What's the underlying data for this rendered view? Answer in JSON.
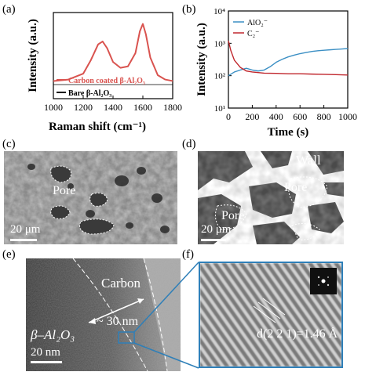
{
  "panels": {
    "a": {
      "label": "(a)"
    },
    "b": {
      "label": "(b)"
    },
    "c": {
      "label": "(c)",
      "pore_label": "Pore",
      "scale": "20 μm"
    },
    "d": {
      "label": "(d)",
      "wall_label": "Wall",
      "pore_label_1": "Pore",
      "pore_label_2": "Pore",
      "scale": "20 μm"
    },
    "e": {
      "label": "(e)",
      "carbon_label": "Carbon",
      "thickness": "~ 30 nm",
      "phase": "β–Al₂O₃",
      "scale": "20 nm"
    },
    "f": {
      "label": "(f)",
      "dspacing": "d(2 2 1)=1.46 Å"
    }
  },
  "chart_data": [
    {
      "type": "line",
      "panel": "a",
      "xlabel": "Raman shift (cm⁻¹)",
      "ylabel": "Intensity (a.u.)",
      "xlim": [
        1000,
        1800
      ],
      "x_ticks": [
        1000,
        1200,
        1400,
        1600,
        1800
      ],
      "legend_position": "bottom",
      "series": [
        {
          "name": "Carbon coated β-Al₂O₃",
          "color": "#d9534f",
          "x": [
            1000,
            1100,
            1200,
            1250,
            1300,
            1330,
            1360,
            1400,
            1450,
            1500,
            1550,
            1580,
            1600,
            1620,
            1650,
            1700,
            1750,
            1800
          ],
          "values": [
            0.1,
            0.12,
            0.2,
            0.38,
            0.6,
            0.64,
            0.55,
            0.36,
            0.28,
            0.3,
            0.48,
            0.78,
            0.88,
            0.74,
            0.42,
            0.18,
            0.12,
            0.1
          ]
        },
        {
          "name": "Bare β-Al₂O₃",
          "color": "#000000",
          "x": [
            1000,
            1800
          ],
          "values": [
            0.0,
            0.0
          ]
        }
      ]
    },
    {
      "type": "line",
      "panel": "b",
      "xlabel": "Time (s)",
      "ylabel": "Intensity (a.u.)",
      "xlim": [
        0,
        1000
      ],
      "ylim": [
        10,
        10000
      ],
      "yscale": "log",
      "x_ticks": [
        0,
        200,
        400,
        600,
        800,
        1000
      ],
      "y_ticks": [
        {
          "value": 10,
          "label": "10¹"
        },
        {
          "value": 100,
          "label": "10²"
        },
        {
          "value": 1000,
          "label": "10³"
        },
        {
          "value": 10000,
          "label": "10⁴"
        }
      ],
      "legend_position": "top-left",
      "series": [
        {
          "name": "AlO₂⁻",
          "color": "#3b8fc4",
          "x": [
            0,
            50,
            100,
            150,
            200,
            250,
            300,
            350,
            400,
            450,
            500,
            550,
            600,
            650,
            700,
            750,
            800,
            850,
            900,
            950,
            1000
          ],
          "values": [
            100,
            130,
            150,
            170,
            150,
            140,
            150,
            190,
            260,
            320,
            380,
            430,
            480,
            520,
            560,
            590,
            610,
            630,
            650,
            670,
            690
          ]
        },
        {
          "name": "C₂⁻",
          "color": "#c0272d",
          "x": [
            0,
            20,
            50,
            100,
            150,
            200,
            250,
            300,
            400,
            500,
            600,
            700,
            800,
            900,
            1000
          ],
          "values": [
            1200,
            600,
            300,
            180,
            140,
            130,
            125,
            120,
            118,
            115,
            115,
            112,
            110,
            108,
            105
          ]
        }
      ]
    }
  ]
}
